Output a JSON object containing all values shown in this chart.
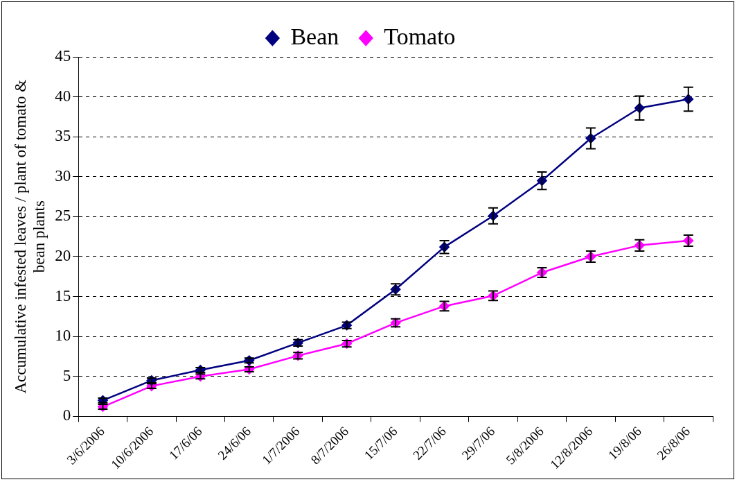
{
  "chart_data": {
    "type": "line",
    "ylabel": "Accumulative infested leaves / plant of tomato & bean plants",
    "categories": [
      "3/6/2006",
      "10/6/2006",
      "17/6/06",
      "24/6/06",
      "1/7/2006",
      "8/7/2006",
      "15/7/06",
      "22/7/06",
      "29/7/06",
      "5/8/2006",
      "12/8/2006",
      "19/8/06",
      "26/8/06"
    ],
    "series": [
      {
        "name": "Bean",
        "color": "#000080",
        "values": [
          2.0,
          4.5,
          5.8,
          7.0,
          9.2,
          11.4,
          15.9,
          21.2,
          25.1,
          29.5,
          34.8,
          38.6,
          39.7
        ],
        "errors": [
          0.3,
          0.3,
          0.3,
          0.3,
          0.4,
          0.4,
          0.7,
          0.8,
          1.0,
          1.1,
          1.3,
          1.5,
          1.5
        ]
      },
      {
        "name": "Tomato",
        "color": "#ff00ff",
        "values": [
          1.2,
          3.8,
          5.0,
          5.9,
          7.6,
          9.1,
          11.7,
          13.8,
          15.1,
          18.0,
          20.0,
          21.4,
          22.0
        ],
        "errors": [
          0.3,
          0.3,
          0.3,
          0.3,
          0.4,
          0.4,
          0.5,
          0.6,
          0.6,
          0.6,
          0.7,
          0.7,
          0.7
        ]
      }
    ],
    "ylim": [
      0,
      45
    ],
    "yticks": [
      0,
      5,
      10,
      15,
      20,
      25,
      30,
      35,
      40,
      45
    ],
    "grid": "y",
    "legend": "top",
    "marker": "diamond",
    "line_style": "solid"
  }
}
